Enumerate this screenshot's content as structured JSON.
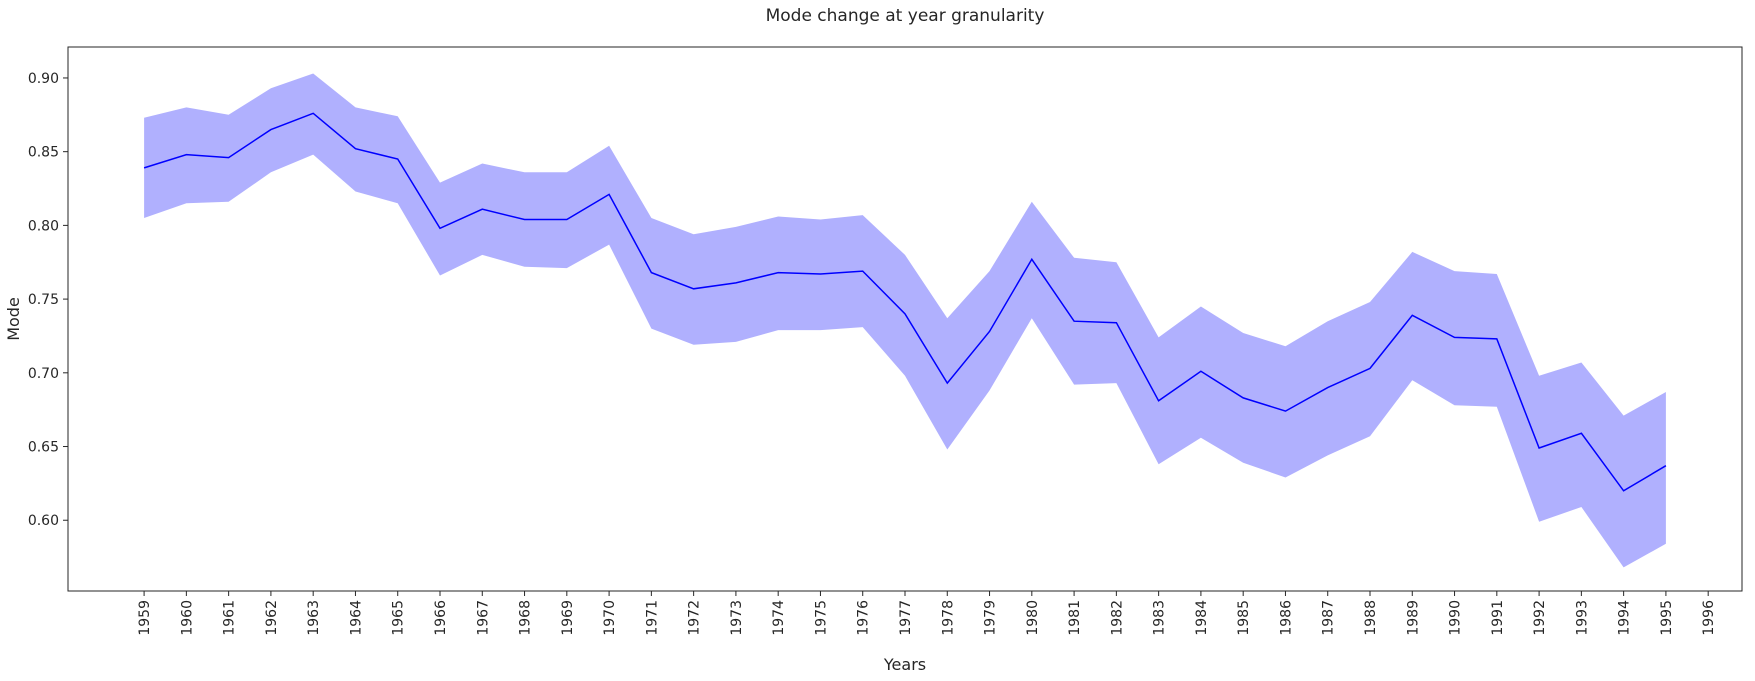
{
  "chart_data": {
    "type": "line",
    "title": "Mode change at year granularity",
    "xlabel": "Years",
    "ylabel": "Mode",
    "x": [
      1959,
      1960,
      1961,
      1962,
      1963,
      1964,
      1965,
      1966,
      1967,
      1968,
      1969,
      1970,
      1971,
      1972,
      1973,
      1974,
      1975,
      1976,
      1977,
      1978,
      1979,
      1980,
      1981,
      1982,
      1983,
      1984,
      1985,
      1986,
      1987,
      1988,
      1989,
      1990,
      1991,
      1992,
      1993,
      1994,
      1995
    ],
    "x_ticks": [
      1959,
      1960,
      1961,
      1962,
      1963,
      1964,
      1965,
      1966,
      1967,
      1968,
      1969,
      1970,
      1971,
      1972,
      1973,
      1974,
      1975,
      1976,
      1977,
      1978,
      1979,
      1980,
      1981,
      1982,
      1983,
      1984,
      1985,
      1986,
      1987,
      1988,
      1989,
      1990,
      1991,
      1992,
      1993,
      1994,
      1995,
      1996
    ],
    "xlim": [
      1957.2,
      1996.8
    ],
    "y_ticks": [
      "0.60",
      "0.65",
      "0.70",
      "0.75",
      "0.80",
      "0.85",
      "0.90"
    ],
    "ylim": [
      0.552,
      0.921
    ],
    "series": [
      {
        "values": [
          0.839,
          0.848,
          0.846,
          0.865,
          0.876,
          0.852,
          0.845,
          0.798,
          0.811,
          0.804,
          0.804,
          0.821,
          0.768,
          0.757,
          0.761,
          0.768,
          0.767,
          0.769,
          0.74,
          0.693,
          0.728,
          0.777,
          0.735,
          0.734,
          0.681,
          0.701,
          0.683,
          0.674,
          0.69,
          0.703,
          0.739,
          0.724,
          0.723,
          0.649,
          0.659,
          0.62,
          0.637
        ],
        "upper": [
          0.873,
          0.88,
          0.875,
          0.893,
          0.903,
          0.88,
          0.874,
          0.829,
          0.842,
          0.836,
          0.836,
          0.854,
          0.805,
          0.794,
          0.799,
          0.806,
          0.804,
          0.807,
          0.78,
          0.737,
          0.769,
          0.816,
          0.778,
          0.775,
          0.724,
          0.745,
          0.727,
          0.718,
          0.735,
          0.748,
          0.782,
          0.769,
          0.767,
          0.698,
          0.707,
          0.671,
          0.687
        ],
        "lower": [
          0.805,
          0.815,
          0.816,
          0.836,
          0.848,
          0.823,
          0.815,
          0.766,
          0.78,
          0.772,
          0.771,
          0.787,
          0.73,
          0.719,
          0.721,
          0.729,
          0.729,
          0.731,
          0.698,
          0.648,
          0.688,
          0.737,
          0.692,
          0.693,
          0.638,
          0.656,
          0.639,
          0.629,
          0.644,
          0.657,
          0.695,
          0.678,
          0.677,
          0.599,
          0.609,
          0.568,
          0.584
        ],
        "line_color": "#0000ff",
        "band_color": "#b0b0fe"
      }
    ],
    "grid": false,
    "legend": "none"
  }
}
